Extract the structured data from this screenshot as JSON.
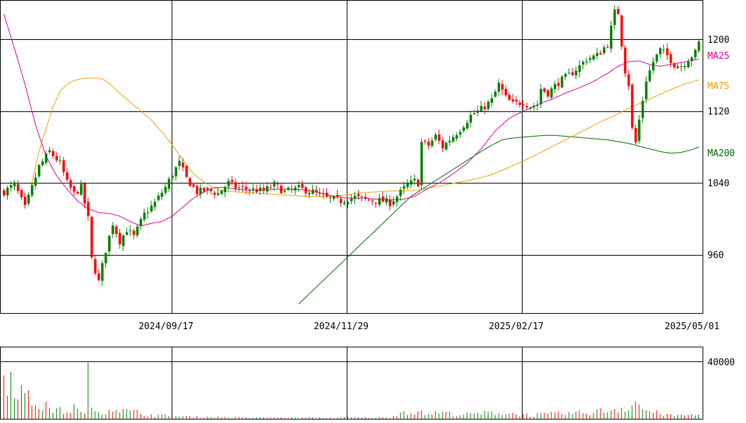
{
  "chart_data": [
    {
      "type": "candlestick",
      "y_axis": {
        "ticks": [
          960,
          1040,
          1120,
          1200
        ],
        "range": [
          895,
          1243
        ]
      },
      "x_axis": {
        "ticks": [
          "2024/09/17",
          "2024/11/29",
          "2025/02/17",
          "2025/05/01"
        ]
      },
      "colors": {
        "up": "#008000",
        "down": "#ff0000",
        "ma25": "#e0009a",
        "ma75": "#f0a000",
        "ma200": "#006400",
        "grid": "#000000"
      },
      "moving_averages": [
        {
          "label": "MA25",
          "color": "#e0009a"
        },
        {
          "label": "MA75",
          "color": "#f0a000"
        },
        {
          "label": "MA200",
          "color": "#006400"
        }
      ],
      "anchors": [
        [
          0,
          1030
        ],
        [
          3,
          1038
        ],
        [
          6,
          1012
        ],
        [
          10,
          1058
        ],
        [
          13,
          1075
        ],
        [
          16,
          1062
        ],
        [
          18,
          1040
        ],
        [
          20,
          1028
        ],
        [
          22,
          1035
        ],
        [
          24,
          1000
        ],
        [
          25,
          955
        ],
        [
          27,
          930
        ],
        [
          29,
          965
        ],
        [
          31,
          995
        ],
        [
          33,
          975
        ],
        [
          35,
          988
        ],
        [
          37,
          980
        ],
        [
          40,
          1005
        ],
        [
          43,
          1018
        ],
        [
          46,
          1035
        ],
        [
          48,
          1050
        ],
        [
          50,
          1062
        ],
        [
          52,
          1045
        ],
        [
          55,
          1030
        ],
        [
          58,
          1032
        ],
        [
          61,
          1028
        ],
        [
          64,
          1040
        ],
        [
          66,
          1035
        ],
        [
          70,
          1033
        ],
        [
          74,
          1031
        ],
        [
          77,
          1038
        ],
        [
          80,
          1030
        ],
        [
          84,
          1034
        ],
        [
          88,
          1030
        ],
        [
          92,
          1023
        ],
        [
          96,
          1020
        ],
        [
          100,
          1024
        ],
        [
          104,
          1021
        ],
        [
          108,
          1020
        ],
        [
          110,
          1018
        ],
        [
          112,
          1025
        ],
        [
          115,
          1038
        ],
        [
          117,
          1042
        ],
        [
          118,
          1040
        ],
        [
          119,
          1085
        ],
        [
          121,
          1082
        ],
        [
          123,
          1092
        ],
        [
          125,
          1080
        ],
        [
          127,
          1088
        ],
        [
          130,
          1100
        ],
        [
          133,
          1115
        ],
        [
          136,
          1122
        ],
        [
          139,
          1132
        ],
        [
          141,
          1150
        ],
        [
          143,
          1135
        ],
        [
          145,
          1128
        ],
        [
          148,
          1130
        ],
        [
          150,
          1125
        ],
        [
          152,
          1127
        ],
        [
          153,
          1145
        ],
        [
          155,
          1140
        ],
        [
          158,
          1152
        ],
        [
          161,
          1160
        ],
        [
          164,
          1170
        ],
        [
          166,
          1178
        ],
        [
          169,
          1182
        ],
        [
          172,
          1195
        ],
        [
          174,
          1230
        ],
        [
          175,
          1230
        ],
        [
          176,
          1195
        ],
        [
          177,
          1165
        ],
        [
          178,
          1150
        ],
        [
          179,
          1100
        ],
        [
          180,
          1085
        ],
        [
          181,
          1110
        ],
        [
          183,
          1155
        ],
        [
          185,
          1175
        ],
        [
          187,
          1188
        ],
        [
          189,
          1182
        ],
        [
          191,
          1172
        ],
        [
          193,
          1170
        ],
        [
          195,
          1178
        ],
        [
          197,
          1185
        ],
        [
          198,
          1196
        ]
      ],
      "ma25": [
        [
          0,
          1228
        ],
        [
          3,
          1190
        ],
        [
          6,
          1150
        ],
        [
          9,
          1105
        ],
        [
          12,
          1070
        ],
        [
          15,
          1048
        ],
        [
          18,
          1033
        ],
        [
          21,
          1020
        ],
        [
          24,
          1011
        ],
        [
          27,
          1007
        ],
        [
          30,
          1006
        ],
        [
          33,
          1003
        ],
        [
          36,
          997
        ],
        [
          39,
          992
        ],
        [
          42,
          995
        ],
        [
          45,
          997
        ],
        [
          48,
          1003
        ],
        [
          51,
          1013
        ],
        [
          54,
          1023
        ],
        [
          57,
          1030
        ],
        [
          60,
          1035
        ],
        [
          63,
          1035
        ],
        [
          66,
          1033
        ],
        [
          70,
          1032
        ],
        [
          74,
          1032
        ],
        [
          78,
          1033
        ],
        [
          82,
          1033
        ],
        [
          86,
          1032
        ],
        [
          90,
          1029
        ],
        [
          94,
          1025
        ],
        [
          98,
          1023
        ],
        [
          102,
          1023
        ],
        [
          106,
          1022
        ],
        [
          110,
          1021
        ],
        [
          114,
          1022
        ],
        [
          117,
          1025
        ],
        [
          120,
          1032
        ],
        [
          124,
          1040
        ],
        [
          128,
          1050
        ],
        [
          132,
          1062
        ],
        [
          136,
          1078
        ],
        [
          140,
          1098
        ],
        [
          144,
          1112
        ],
        [
          148,
          1120
        ],
        [
          152,
          1127
        ],
        [
          156,
          1133
        ],
        [
          160,
          1140
        ],
        [
          164,
          1146
        ],
        [
          168,
          1153
        ],
        [
          172,
          1162
        ],
        [
          175,
          1170
        ],
        [
          178,
          1175
        ],
        [
          181,
          1176
        ],
        [
          184,
          1172
        ],
        [
          187,
          1170
        ],
        [
          190,
          1172
        ],
        [
          194,
          1175
        ],
        [
          198,
          1178
        ]
      ],
      "ma75": [
        [
          8,
          1040
        ],
        [
          10,
          1075
        ],
        [
          12,
          1100
        ],
        [
          14,
          1125
        ],
        [
          16,
          1142
        ],
        [
          18,
          1150
        ],
        [
          20,
          1154
        ],
        [
          22,
          1156
        ],
        [
          24,
          1157
        ],
        [
          26,
          1157
        ],
        [
          28,
          1156
        ],
        [
          30,
          1151
        ],
        [
          33,
          1140
        ],
        [
          36,
          1130
        ],
        [
          39,
          1120
        ],
        [
          42,
          1110
        ],
        [
          45,
          1097
        ],
        [
          48,
          1082
        ],
        [
          51,
          1066
        ],
        [
          54,
          1050
        ],
        [
          57,
          1041
        ],
        [
          60,
          1034
        ],
        [
          63,
          1031
        ],
        [
          66,
          1030
        ],
        [
          70,
          1029
        ],
        [
          74,
          1028
        ],
        [
          78,
          1027
        ],
        [
          82,
          1026
        ],
        [
          86,
          1025
        ],
        [
          90,
          1025
        ],
        [
          94,
          1025
        ],
        [
          98,
          1027
        ],
        [
          102,
          1029
        ],
        [
          106,
          1030
        ],
        [
          110,
          1031
        ],
        [
          114,
          1031
        ],
        [
          118,
          1032
        ],
        [
          122,
          1035
        ],
        [
          126,
          1038
        ],
        [
          130,
          1041
        ],
        [
          134,
          1044
        ],
        [
          138,
          1048
        ],
        [
          142,
          1054
        ],
        [
          146,
          1061
        ],
        [
          150,
          1068
        ],
        [
          154,
          1076
        ],
        [
          158,
          1084
        ],
        [
          162,
          1092
        ],
        [
          166,
          1100
        ],
        [
          170,
          1108
        ],
        [
          174,
          1115
        ],
        [
          178,
          1123
        ],
        [
          182,
          1130
        ],
        [
          186,
          1137
        ],
        [
          190,
          1144
        ],
        [
          194,
          1150
        ],
        [
          198,
          1155
        ]
      ],
      "ma200": [
        [
          84,
          905
        ],
        [
          88,
          920
        ],
        [
          92,
          935
        ],
        [
          96,
          950
        ],
        [
          100,
          965
        ],
        [
          104,
          980
        ],
        [
          108,
          995
        ],
        [
          112,
          1010
        ],
        [
          116,
          1025
        ],
        [
          120,
          1035
        ],
        [
          124,
          1045
        ],
        [
          128,
          1055
        ],
        [
          132,
          1065
        ],
        [
          136,
          1075
        ],
        [
          139,
          1082
        ],
        [
          142,
          1088
        ],
        [
          145,
          1090
        ],
        [
          148,
          1091
        ],
        [
          151,
          1092
        ],
        [
          154,
          1093
        ],
        [
          157,
          1093
        ],
        [
          160,
          1092
        ],
        [
          163,
          1091
        ],
        [
          166,
          1090
        ],
        [
          169,
          1089
        ],
        [
          172,
          1088
        ],
        [
          175,
          1086
        ],
        [
          178,
          1084
        ],
        [
          181,
          1081
        ],
        [
          184,
          1078
        ],
        [
          187,
          1075
        ],
        [
          190,
          1073
        ],
        [
          193,
          1074
        ],
        [
          196,
          1077
        ],
        [
          198,
          1080
        ]
      ]
    },
    {
      "type": "bar",
      "y_axis": {
        "ticks": [
          40000
        ],
        "range": [
          0,
          50000
        ]
      },
      "profile": [
        [
          0,
          38000
        ],
        [
          3,
          30000
        ],
        [
          6,
          17000
        ],
        [
          9,
          12000
        ],
        [
          12,
          9000
        ],
        [
          15,
          7000
        ],
        [
          18,
          5000
        ],
        [
          20,
          9000
        ],
        [
          22,
          4000
        ],
        [
          23,
          8000
        ],
        [
          24,
          30000
        ],
        [
          25,
          7000
        ],
        [
          27,
          6000
        ],
        [
          30,
          7000
        ],
        [
          32,
          10000
        ],
        [
          34,
          6000
        ],
        [
          38,
          5000
        ],
        [
          42,
          3000
        ],
        [
          48,
          2000
        ],
        [
          56,
          1500
        ],
        [
          70,
          1000
        ],
        [
          90,
          800
        ],
        [
          110,
          1000
        ],
        [
          113,
          5000
        ],
        [
          116,
          6000
        ],
        [
          120,
          4000
        ],
        [
          125,
          5000
        ],
        [
          130,
          3000
        ],
        [
          135,
          4000
        ],
        [
          140,
          5000
        ],
        [
          145,
          4000
        ],
        [
          150,
          3000
        ],
        [
          155,
          3500
        ],
        [
          160,
          4000
        ],
        [
          165,
          4500
        ],
        [
          170,
          6000
        ],
        [
          175,
          8000
        ],
        [
          178,
          10000
        ],
        [
          180,
          13000
        ],
        [
          182,
          8000
        ],
        [
          185,
          5000
        ],
        [
          190,
          2500
        ],
        [
          198,
          3000
        ]
      ]
    }
  ]
}
